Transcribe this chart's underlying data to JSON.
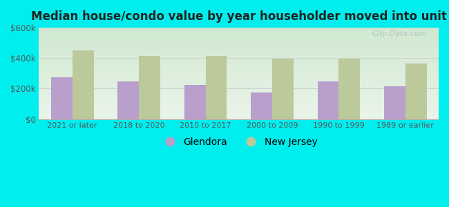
{
  "title": "Median house/condo value by year householder moved into unit",
  "categories": [
    "2021 or later",
    "2018 to 2020",
    "2010 to 2017",
    "2000 to 2009",
    "1990 to 1999",
    "1989 or earlier"
  ],
  "glendora_values": [
    275000,
    245000,
    225000,
    175000,
    245000,
    215000
  ],
  "newjersey_values": [
    450000,
    415000,
    415000,
    395000,
    395000,
    365000
  ],
  "glendora_color": "#b89fcc",
  "newjersey_color": "#bcc99a",
  "background_color": "#00eeee",
  "plot_bg_top": "#eaf5ea",
  "plot_bg_bottom": "#d0e8d0",
  "ylim": [
    0,
    600000
  ],
  "yticks": [
    0,
    200000,
    400000,
    600000
  ],
  "ytick_labels": [
    "$0",
    "$200k",
    "$400k",
    "$600k"
  ],
  "bar_width": 0.32,
  "legend_labels": [
    "Glendora",
    "New Jersey"
  ],
  "watermark": "City-Data.com"
}
